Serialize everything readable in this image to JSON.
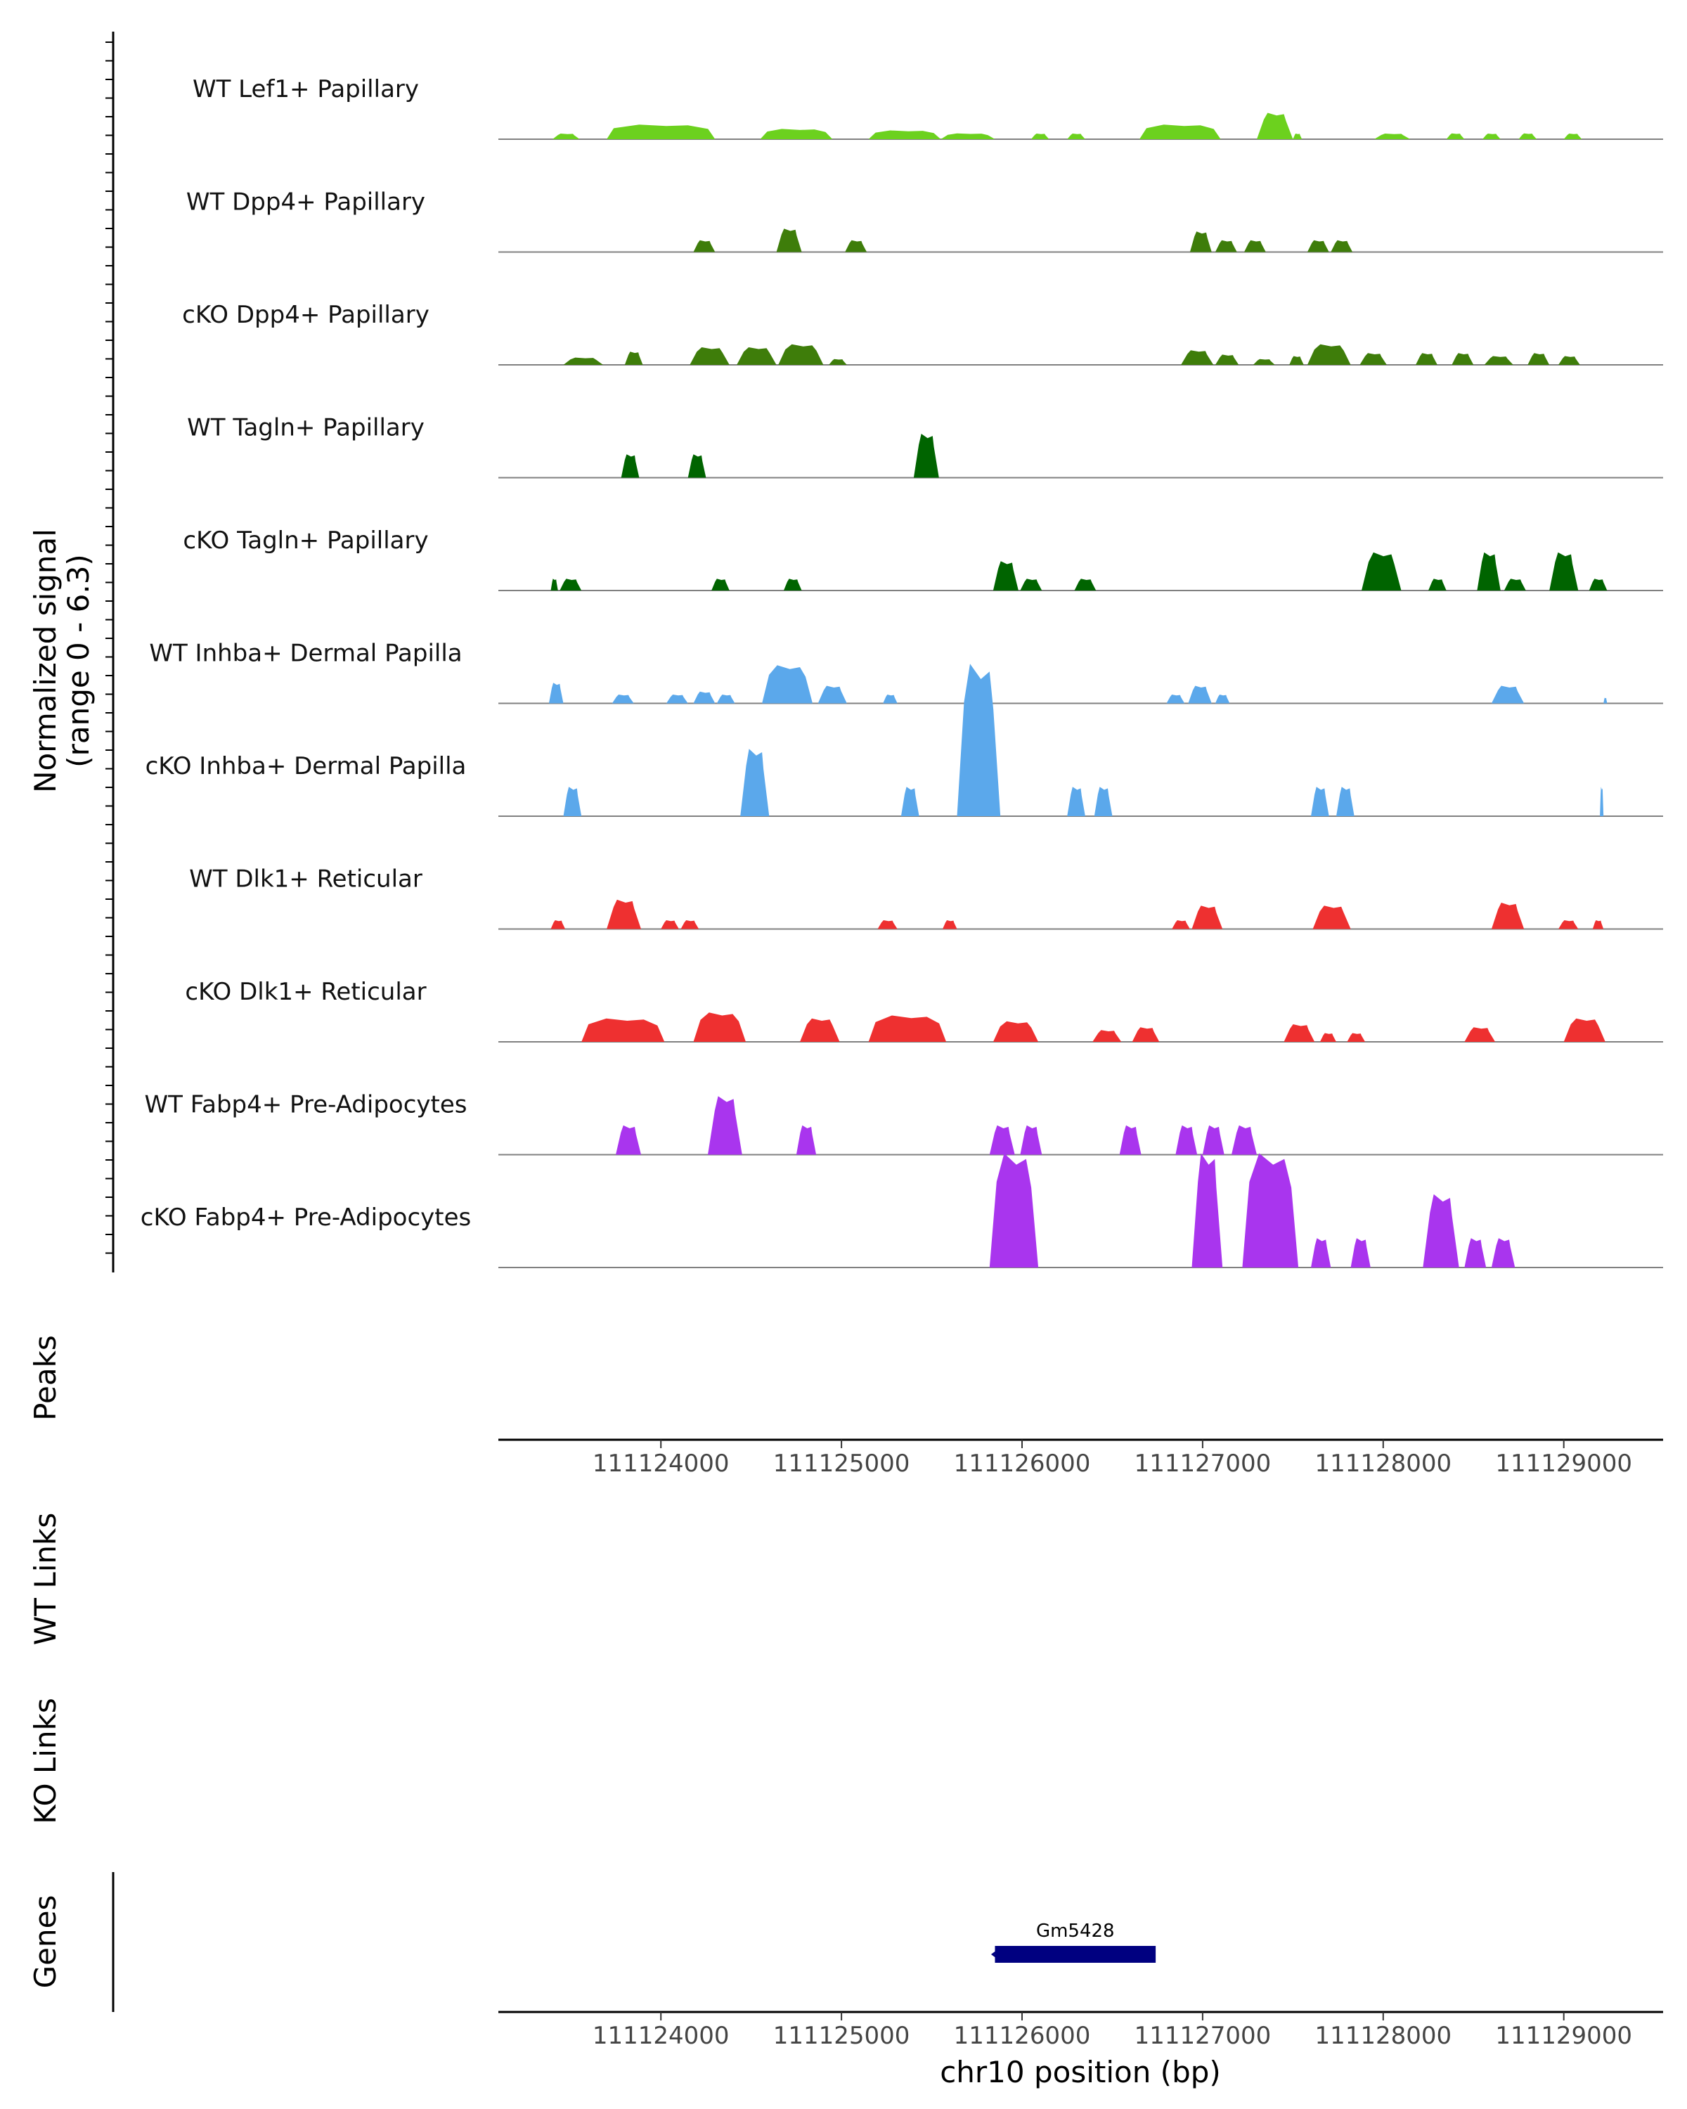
{
  "chart_data": {
    "type": "area",
    "title": "",
    "ylabel_line1": "Normalized signal",
    "ylabel_line2": "(range 0 - 6.3)",
    "y_range": [
      0,
      6.3
    ],
    "x_range": [
      111123100,
      111129550
    ],
    "xlabel": "chr10 position (bp)",
    "x_ticks": [
      111124000,
      111125000,
      111126000,
      111127000,
      111128000,
      111129000
    ],
    "x_tick_labels": [
      "111124000",
      "111125000",
      "111126000",
      "111127000",
      "111128000",
      "111129000"
    ],
    "tracks": [
      {
        "name": "WT Lef1+ Papillary",
        "color": "#6CD11E",
        "peaks": [
          [
            111123400,
            111123550,
            0.15
          ],
          [
            111123700,
            111124300,
            0.5
          ],
          [
            111124550,
            111124950,
            0.35
          ],
          [
            111125150,
            111125550,
            0.3
          ],
          [
            111125550,
            111125850,
            0.2
          ],
          [
            111126050,
            111126150,
            0.1
          ],
          [
            111126250,
            111126350,
            0.1
          ],
          [
            111126650,
            111127100,
            0.5
          ],
          [
            111127300,
            111127500,
            0.9
          ],
          [
            111127500,
            111127550,
            0.1
          ],
          [
            111127950,
            111128150,
            0.15
          ],
          [
            111128350,
            111128450,
            0.2
          ],
          [
            111128550,
            111128650,
            0.1
          ],
          [
            111128750,
            111128850,
            0.2
          ],
          [
            111129000,
            111129100,
            0.1
          ]
        ]
      },
      {
        "name": "WT Dpp4+ Papillary",
        "color": "#3E7D0A",
        "peaks": [
          [
            111124180,
            111124300,
            0.4
          ],
          [
            111124640,
            111124780,
            0.8
          ],
          [
            111125020,
            111125140,
            0.4
          ],
          [
            111126930,
            111127050,
            0.7
          ],
          [
            111127070,
            111127190,
            0.4
          ],
          [
            111127230,
            111127350,
            0.4
          ],
          [
            111127580,
            111127700,
            0.4
          ],
          [
            111127710,
            111127830,
            0.4
          ]
        ]
      },
      {
        "name": "cKO Dpp4+ Papillary",
        "color": "#3E7D0A",
        "peaks": [
          [
            111123460,
            111123680,
            0.25
          ],
          [
            111123800,
            111123900,
            0.45
          ],
          [
            111124160,
            111124380,
            0.6
          ],
          [
            111124420,
            111124640,
            0.6
          ],
          [
            111124650,
            111124900,
            0.7
          ],
          [
            111124930,
            111125030,
            0.2
          ],
          [
            111126880,
            111127060,
            0.5
          ],
          [
            111127070,
            111127200,
            0.35
          ],
          [
            111127280,
            111127400,
            0.2
          ],
          [
            111127480,
            111127560,
            0.3
          ],
          [
            111127580,
            111127820,
            0.7
          ],
          [
            111127870,
            111128020,
            0.4
          ],
          [
            111128180,
            111128300,
            0.4
          ],
          [
            111128380,
            111128500,
            0.4
          ],
          [
            111128560,
            111128720,
            0.3
          ],
          [
            111128800,
            111128920,
            0.4
          ],
          [
            111128970,
            111129090,
            0.3
          ]
        ]
      },
      {
        "name": "WT Tagln+ Papillary",
        "color": "#006400",
        "peaks": [
          [
            111123780,
            111123880,
            0.8
          ],
          [
            111124150,
            111124250,
            0.8
          ],
          [
            111125400,
            111125540,
            1.5
          ]
        ]
      },
      {
        "name": "cKO Tagln+ Papillary",
        "color": "#006400",
        "peaks": [
          [
            111123390,
            111123430,
            0.4
          ],
          [
            111123440,
            111123560,
            0.4
          ],
          [
            111124280,
            111124380,
            0.4
          ],
          [
            111124680,
            111124780,
            0.4
          ],
          [
            111125840,
            111125980,
            1.0
          ],
          [
            111125990,
            111126110,
            0.4
          ],
          [
            111126290,
            111126410,
            0.4
          ],
          [
            111127880,
            111128100,
            1.3
          ],
          [
            111128250,
            111128350,
            0.4
          ],
          [
            111128520,
            111128650,
            1.3
          ],
          [
            111128670,
            111128790,
            0.4
          ],
          [
            111128920,
            111129080,
            1.3
          ],
          [
            111129140,
            111129240,
            0.4
          ]
        ]
      },
      {
        "name": "WT Inhba+ Dermal Papilla",
        "color": "#5BA8EB",
        "peaks": [
          [
            111123380,
            111123460,
            0.7
          ],
          [
            111123730,
            111123850,
            0.3
          ],
          [
            111124030,
            111124150,
            0.3
          ],
          [
            111124180,
            111124300,
            0.4
          ],
          [
            111124310,
            111124410,
            0.3
          ],
          [
            111124560,
            111124840,
            1.3
          ],
          [
            111124870,
            111125030,
            0.6
          ],
          [
            111125230,
            111125310,
            0.3
          ],
          [
            111126800,
            111126900,
            0.3
          ],
          [
            111126920,
            111127050,
            0.6
          ],
          [
            111127070,
            111127150,
            0.3
          ],
          [
            111128600,
            111128780,
            0.6
          ],
          [
            111129220,
            111129240,
            0.1
          ]
        ]
      },
      {
        "name": "cKO Inhba+ Dermal Papilla",
        "color": "#5BA8EB",
        "peaks": [
          [
            111123460,
            111123560,
            1.0
          ],
          [
            111124440,
            111124600,
            2.3
          ],
          [
            111125330,
            111125430,
            1.0
          ],
          [
            111125640,
            111125880,
            5.2
          ],
          [
            111126250,
            111126350,
            1.0
          ],
          [
            111126400,
            111126500,
            1.0
          ],
          [
            111127600,
            111127700,
            1.0
          ],
          [
            111127740,
            111127840,
            1.0
          ],
          [
            111129200,
            111129220,
            1.0
          ]
        ]
      },
      {
        "name": "WT Dlk1+ Reticular",
        "color": "#EE3030",
        "peaks": [
          [
            111123390,
            111123470,
            0.3
          ],
          [
            111123700,
            111123890,
            1.0
          ],
          [
            111124000,
            111124100,
            0.3
          ],
          [
            111124110,
            111124210,
            0.3
          ],
          [
            111125200,
            111125310,
            0.3
          ],
          [
            111125560,
            111125640,
            0.3
          ],
          [
            111126830,
            111126930,
            0.3
          ],
          [
            111126940,
            111127110,
            0.8
          ],
          [
            111127610,
            111127820,
            0.8
          ],
          [
            111128600,
            111128780,
            0.9
          ],
          [
            111128970,
            111129080,
            0.3
          ],
          [
            111129160,
            111129220,
            0.3
          ]
        ]
      },
      {
        "name": "cKO Dlk1+ Reticular",
        "color": "#EE3030",
        "peaks": [
          [
            111123560,
            111124020,
            0.8
          ],
          [
            111124180,
            111124470,
            1.0
          ],
          [
            111124770,
            111124990,
            0.8
          ],
          [
            111125150,
            111125580,
            0.9
          ],
          [
            111125840,
            111126090,
            0.7
          ],
          [
            111126390,
            111126550,
            0.4
          ],
          [
            111126610,
            111126760,
            0.5
          ],
          [
            111127450,
            111127620,
            0.6
          ],
          [
            111127650,
            111127740,
            0.3
          ],
          [
            111127800,
            111127900,
            0.3
          ],
          [
            111128450,
            111128620,
            0.5
          ],
          [
            111129000,
            111129230,
            0.8
          ]
        ]
      },
      {
        "name": "WT Fabp4+ Pre-Adipocytes",
        "color": "#A935EE",
        "peaks": [
          [
            111123750,
            111123890,
            1.0
          ],
          [
            111124260,
            111124450,
            2.0
          ],
          [
            111124750,
            111124860,
            1.0
          ],
          [
            111125820,
            111125960,
            1.0
          ],
          [
            111125990,
            111126110,
            1.0
          ],
          [
            111126540,
            111126660,
            1.0
          ],
          [
            111126850,
            111126970,
            1.0
          ],
          [
            111127000,
            111127120,
            1.0
          ],
          [
            111127160,
            111127300,
            1.0
          ]
        ]
      },
      {
        "name": "cKO Fabp4+ Pre-Adipocytes",
        "color": "#A935EE",
        "peaks": [
          [
            111125820,
            111126090,
            3.9
          ],
          [
            111126940,
            111127110,
            3.9
          ],
          [
            111127220,
            111127530,
            3.9
          ],
          [
            111127600,
            111127710,
            1.0
          ],
          [
            111127820,
            111127930,
            1.0
          ],
          [
            111128220,
            111128420,
            2.5
          ],
          [
            111128450,
            111128570,
            1.0
          ],
          [
            111128600,
            111128730,
            1.0
          ]
        ]
      }
    ],
    "peaks_label": "Peaks",
    "wt_links_label": "WT Links",
    "ko_links_label": "KO Links",
    "genes_label": "Genes",
    "genes": [
      {
        "name": "Gm5428",
        "start": 111125850,
        "end": 111126740,
        "strand": "-"
      }
    ]
  }
}
